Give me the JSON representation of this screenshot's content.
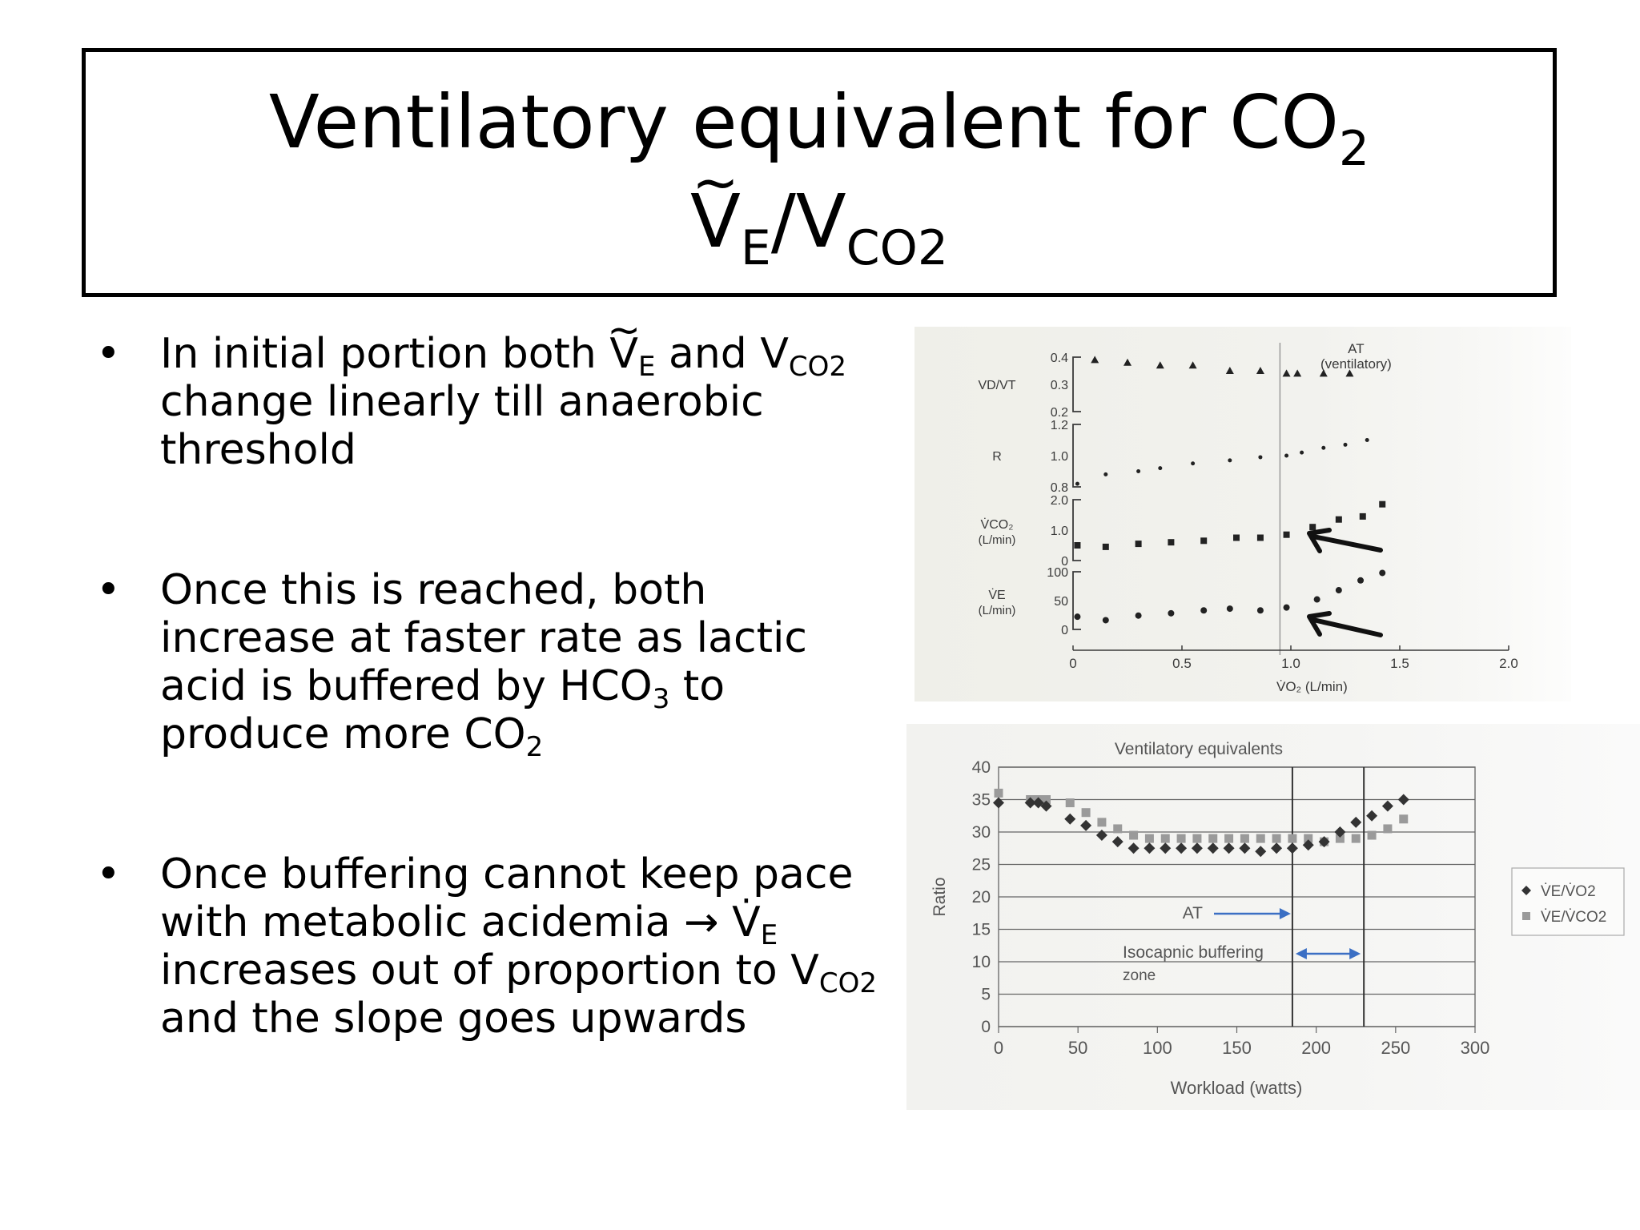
{
  "title": {
    "line1_text": "Ventilatory equivalent for CO",
    "line1_sub": "2",
    "line2_v": "V",
    "line2_sub_e": "E",
    "line2_slash_v": "/V",
    "line2_sub_co2": "CO2"
  },
  "bullets": [
    {
      "pre": "In initial portion both ",
      "v": "V",
      "sub_e": "E",
      "mid": " and V",
      "sub_co2": "CO2",
      "post": " change linearly till anaerobic threshold"
    },
    {
      "pre": "Once this is reached, both increase at faster rate as lactic acid is buffered by HCO",
      "sub3": "3",
      "mid": " to produce more CO",
      "sub2": "2"
    },
    {
      "pre": "Once buffering cannot keep pace with metabolic acidemia ",
      "arrow": "→",
      "v": "V",
      "sub_e": "E",
      "mid": " increases out of proportion to V",
      "sub_co2": "CO2",
      "post": " and the slope goes upwards"
    }
  ],
  "chart_data": [
    {
      "type": "scatter",
      "xlabel": "V̇O₂ (L/min)",
      "xticks": [
        "0",
        "0.5",
        "1.0",
        "1.5",
        "2.0"
      ],
      "xlim": [
        0,
        2.0
      ],
      "threshold_label": [
        "AT",
        "(ventilatory)"
      ],
      "threshold_x": 0.95,
      "panels": [
        {
          "ylabel": "VD/VT",
          "yticks": [
            "0.4",
            "0.3",
            "0.2"
          ],
          "ylim": [
            0.2,
            0.4
          ],
          "marker": "triangle",
          "x": [
            0.1,
            0.25,
            0.4,
            0.55,
            0.72,
            0.86,
            0.98,
            1.03,
            1.15,
            1.27
          ],
          "y": [
            0.39,
            0.38,
            0.37,
            0.37,
            0.35,
            0.35,
            0.34,
            0.34,
            0.34,
            0.34
          ]
        },
        {
          "ylabel": "R",
          "yticks": [
            "1.2",
            "1.0",
            "0.8"
          ],
          "ylim": [
            0.8,
            1.2
          ],
          "marker": "dot",
          "x": [
            0.02,
            0.15,
            0.3,
            0.4,
            0.55,
            0.72,
            0.86,
            0.98,
            1.05,
            1.15,
            1.25,
            1.35
          ],
          "y": [
            0.82,
            0.88,
            0.9,
            0.92,
            0.95,
            0.97,
            0.99,
            1.0,
            1.02,
            1.05,
            1.07,
            1.1
          ]
        },
        {
          "ylabel": "V̇CO₂",
          "yunit": "(L/min)",
          "yticks": [
            "2.0",
            "1.0",
            "0"
          ],
          "ylim": [
            0,
            2.0
          ],
          "marker": "square",
          "x": [
            0.02,
            0.15,
            0.3,
            0.45,
            0.6,
            0.75,
            0.86,
            0.98,
            1.1,
            1.22,
            1.33,
            1.42
          ],
          "y": [
            0.5,
            0.45,
            0.55,
            0.6,
            0.65,
            0.75,
            0.75,
            0.85,
            1.1,
            1.35,
            1.45,
            1.85
          ]
        },
        {
          "ylabel": "V̇E",
          "yunit": "(L/min)",
          "yticks": [
            "100",
            "50",
            "0"
          ],
          "ylim": [
            0,
            100
          ],
          "marker": "dot",
          "x": [
            0.02,
            0.15,
            0.3,
            0.45,
            0.6,
            0.72,
            0.86,
            0.98,
            1.12,
            1.22,
            1.32,
            1.42
          ],
          "y": [
            22,
            16,
            24,
            28,
            33,
            36,
            33,
            38,
            52,
            68,
            85,
            98
          ]
        }
      ]
    },
    {
      "type": "scatter",
      "title": "Ventilatory equivalents",
      "xlabel": "Workload (watts)",
      "ylabel": "Ratio",
      "xlim": [
        0,
        300
      ],
      "ylim": [
        0,
        40
      ],
      "xticks": [
        0,
        50,
        100,
        150,
        200,
        250,
        300
      ],
      "yticks": [
        0,
        5,
        10,
        15,
        20,
        25,
        30,
        35,
        40
      ],
      "grid": true,
      "legend_position": "right",
      "vlines": [
        185,
        230
      ],
      "annotations": {
        "at": "AT",
        "buffer_line1": "Isocapnic buffering",
        "buffer_line2": "zone"
      },
      "series": [
        {
          "name": "V̇E/V̇O2",
          "marker": "diamond",
          "color": "#333333",
          "x": [
            0,
            20,
            25,
            30,
            45,
            55,
            65,
            75,
            85,
            95,
            105,
            115,
            125,
            135,
            145,
            155,
            165,
            175,
            185,
            195,
            205,
            215,
            225,
            235,
            245,
            255
          ],
          "y": [
            34.5,
            34.5,
            34.5,
            34,
            32,
            31,
            29.5,
            28.5,
            27.5,
            27.5,
            27.5,
            27.5,
            27.5,
            27.5,
            27.5,
            27.5,
            27,
            27.5,
            27.5,
            28,
            28.5,
            30,
            31.5,
            32.5,
            34,
            35
          ]
        },
        {
          "name": "V̇E/V̇CO2",
          "marker": "square",
          "color": "#9a9a9a",
          "x": [
            0,
            20,
            25,
            30,
            45,
            55,
            65,
            75,
            85,
            95,
            105,
            115,
            125,
            135,
            145,
            155,
            165,
            175,
            185,
            195,
            205,
            215,
            225,
            235,
            245,
            255
          ],
          "y": [
            36,
            35,
            35,
            35,
            34.5,
            33,
            31.5,
            30.5,
            29.5,
            29,
            29,
            29,
            29,
            29,
            29,
            29,
            29,
            29,
            29,
            29,
            28.5,
            29,
            29,
            29.5,
            30.5,
            32
          ]
        }
      ]
    }
  ]
}
